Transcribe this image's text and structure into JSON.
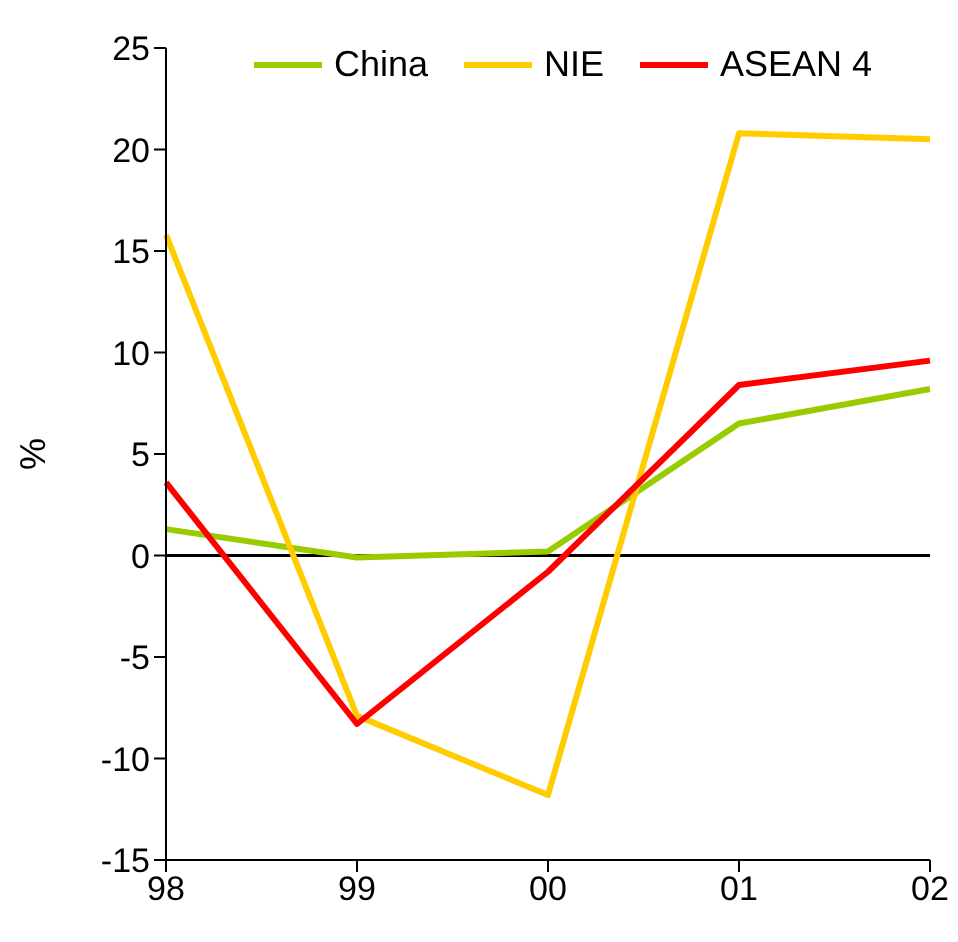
{
  "chart_data": {
    "type": "line",
    "ylabel": "%",
    "categories": [
      "98",
      "99",
      "00",
      "01",
      "02"
    ],
    "series": [
      {
        "name": "China",
        "color": "#99cc00",
        "values": [
          1.3,
          -0.1,
          0.2,
          6.5,
          8.2
        ]
      },
      {
        "name": "NIE",
        "color": "#ffcc00",
        "values": [
          15.8,
          -7.9,
          -11.8,
          20.8,
          20.5
        ]
      },
      {
        "name": "ASEAN 4",
        "color": "#ff0000",
        "values": [
          3.6,
          -8.3,
          -0.8,
          8.4,
          9.6
        ]
      }
    ],
    "ylim": [
      -15,
      25
    ],
    "yticks": [
      -15,
      -10,
      -5,
      0,
      5,
      10,
      15,
      20,
      25
    ],
    "grid": false,
    "legend": "top",
    "marker": "none",
    "line_style": "solid",
    "ref_lines": [
      {
        "axis": "y",
        "value": 0,
        "color": "#000000"
      }
    ]
  }
}
